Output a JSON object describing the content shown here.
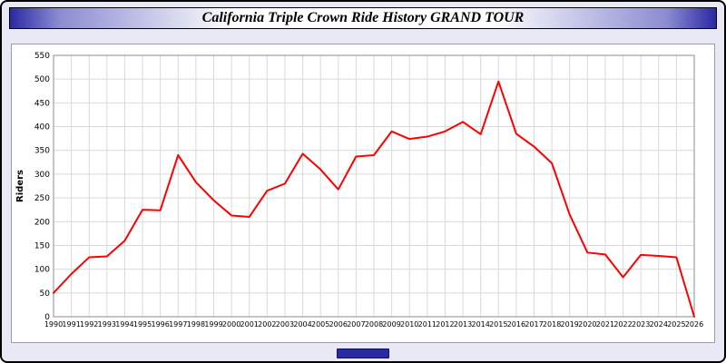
{
  "title": "California Triple Crown Ride History GRAND TOUR",
  "colors": {
    "window_bg": "#e9e9f6",
    "titlebar_blue": "#2929a3",
    "plot_bg": "#ffffff",
    "grid": "#d9d9d9",
    "line": "#ff0000"
  },
  "chart_data": {
    "type": "line",
    "title": "California Triple Crown Ride History GRAND TOUR",
    "x": [
      1990,
      1991,
      1992,
      1993,
      1994,
      1995,
      1996,
      1997,
      1998,
      1999,
      2000,
      2001,
      2002,
      2003,
      2004,
      2005,
      2006,
      2007,
      2008,
      2009,
      2010,
      2011,
      2012,
      2013,
      2014,
      2015,
      2016,
      2017,
      2018,
      2019,
      2020,
      2021,
      2022,
      2023,
      2024,
      2025,
      2026
    ],
    "values": [
      50,
      90,
      125,
      127,
      160,
      225,
      224,
      340,
      283,
      245,
      213,
      210,
      265,
      280,
      343,
      310,
      268,
      337,
      340,
      390,
      374,
      379,
      390,
      410,
      384,
      495,
      385,
      358,
      323,
      215,
      135,
      131,
      83,
      130,
      128,
      125,
      0
    ],
    "xlabel": "",
    "ylabel": "Riders",
    "ylim": [
      0,
      550
    ],
    "ytick_step": 50,
    "line_color": "#ff0000",
    "grid": true,
    "legend": "none"
  }
}
